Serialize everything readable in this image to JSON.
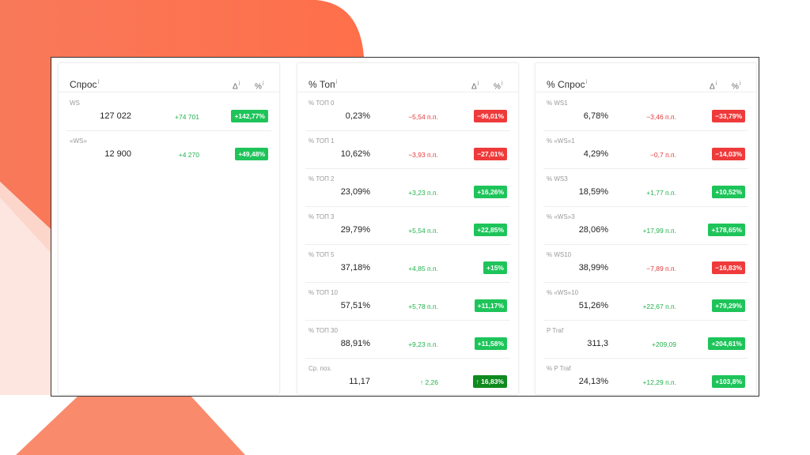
{
  "info": "i",
  "delta_header": "Δ",
  "pct_header": "%",
  "panels": [
    {
      "title": "Спрос",
      "rows": [
        {
          "label": "WS",
          "value": "127 022",
          "delta": "+74 701",
          "pct": "+142,77%",
          "delta_color": "#22b14c",
          "badge_color": "#1ec45a"
        },
        {
          "label": "«WS»",
          "value": "12 900",
          "delta": "+4 270",
          "pct": "+49,48%",
          "delta_color": "#22b14c",
          "badge_color": "#1ec45a"
        }
      ]
    },
    {
      "title": "% Топ",
      "rows": [
        {
          "label": "% ТОП 0",
          "value": "0,23%",
          "delta": "−5,54 п.п.",
          "pct": "−96,01%",
          "delta_color": "#e5393b",
          "badge_color": "#ee3a3a"
        },
        {
          "label": "% ТОП 1",
          "value": "10,62%",
          "delta": "−3,93 п.п.",
          "pct": "−27,01%",
          "delta_color": "#e5393b",
          "badge_color": "#ee3a3a"
        },
        {
          "label": "% ТОП 2",
          "value": "23,09%",
          "delta": "+3,23 п.п.",
          "pct": "+16,26%",
          "delta_color": "#22b14c",
          "badge_color": "#1ec45a"
        },
        {
          "label": "% ТОП 3",
          "value": "29,79%",
          "delta": "+5,54 п.п.",
          "pct": "+22,85%",
          "delta_color": "#22b14c",
          "badge_color": "#1ec45a"
        },
        {
          "label": "% ТОП 5",
          "value": "37,18%",
          "delta": "+4,85 п.п.",
          "pct": "+15%",
          "delta_color": "#22b14c",
          "badge_color": "#1ec45a"
        },
        {
          "label": "% ТОП 10",
          "value": "57,51%",
          "delta": "+5,78 п.п.",
          "pct": "+11,17%",
          "delta_color": "#22b14c",
          "badge_color": "#1ec45a"
        },
        {
          "label": "% ТОП 30",
          "value": "88,91%",
          "delta": "+9,23 п.п.",
          "pct": "+11,58%",
          "delta_color": "#22b14c",
          "badge_color": "#1ec45a"
        },
        {
          "label": "Ср. поз.",
          "value": "11,17",
          "delta": "↑ 2,26",
          "pct": "↑ 16,83%",
          "delta_color": "#22b14c",
          "badge_color": "#0e8a1e"
        }
      ]
    },
    {
      "title": "% Спрос",
      "rows": [
        {
          "label": "% WS1",
          "value": "6,78%",
          "delta": "−3,46 п.п.",
          "pct": "−33,79%",
          "delta_color": "#e5393b",
          "badge_color": "#ee3a3a"
        },
        {
          "label": "% «WS»1",
          "value": "4,29%",
          "delta": "−0,7 п.п.",
          "pct": "−14,03%",
          "delta_color": "#e5393b",
          "badge_color": "#ee3a3a"
        },
        {
          "label": "% WS3",
          "value": "18,59%",
          "delta": "+1,77 п.п.",
          "pct": "+10,52%",
          "delta_color": "#22b14c",
          "badge_color": "#1ec45a"
        },
        {
          "label": "% «WS»3",
          "value": "28,06%",
          "delta": "+17,99 п.п.",
          "pct": "+178,65%",
          "delta_color": "#22b14c",
          "badge_color": "#1ec45a"
        },
        {
          "label": "% WS10",
          "value": "38,99%",
          "delta": "−7,89 п.п.",
          "pct": "−16,83%",
          "delta_color": "#e5393b",
          "badge_color": "#ee3a3a"
        },
        {
          "label": "% «WS»10",
          "value": "51,26%",
          "delta": "+22,67 п.п.",
          "pct": "+79,29%",
          "delta_color": "#22b14c",
          "badge_color": "#1ec45a"
        },
        {
          "label": "P Traf",
          "value": "311,3",
          "delta": "+209,09",
          "pct": "+204,61%",
          "delta_color": "#22b14c",
          "badge_color": "#1ec45a"
        },
        {
          "label": "% P Traf",
          "value": "24,13%",
          "delta": "+12,29 п.п.",
          "pct": "+103,8%",
          "delta_color": "#22b14c",
          "badge_color": "#1ec45a"
        }
      ]
    }
  ]
}
